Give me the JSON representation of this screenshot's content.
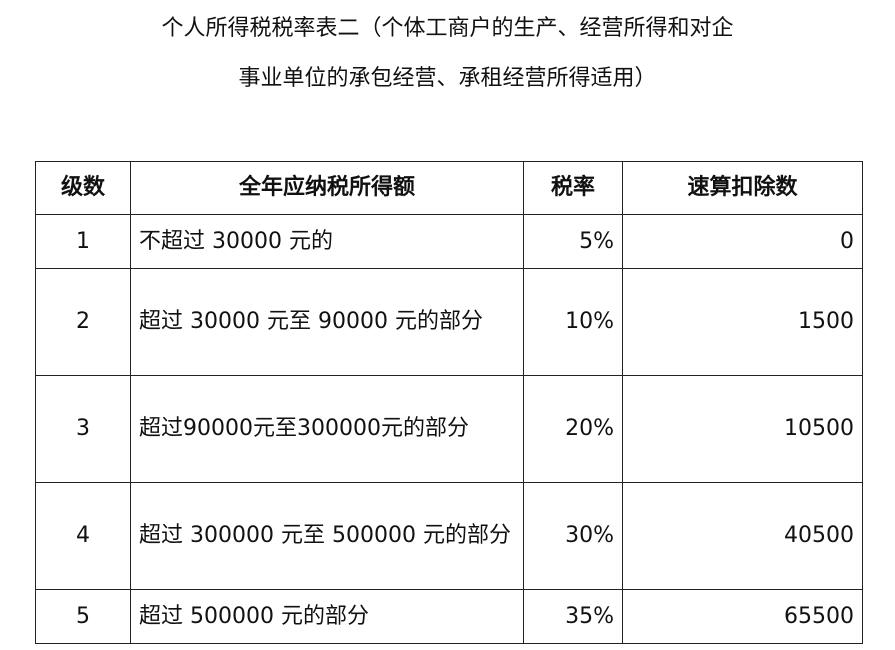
{
  "title": {
    "line1": "个人所得税税率表二（个体工商户的生产、经营所得和对企",
    "line2": "事业单位的承包经营、承租经营所得适用）"
  },
  "table": {
    "headers": [
      "级数",
      "全年应纳税所得额",
      "税率",
      "速算扣除数"
    ],
    "rows": [
      {
        "level": "1",
        "range": "不超过 30000 元的",
        "rate": "5%",
        "deduction": "0"
      },
      {
        "level": "2",
        "range": "超过 30000 元至 90000 元的部分",
        "rate": "10%",
        "deduction": "1500"
      },
      {
        "level": "3",
        "range": "超过90000元至300000元的部分",
        "rate": "20%",
        "deduction": "10500"
      },
      {
        "level": "4",
        "range": "超过 300000 元至 500000 元的部分",
        "rate": "30%",
        "deduction": "40500"
      },
      {
        "level": "5",
        "range": "超过 500000 元的部分",
        "rate": "35%",
        "deduction": "65500"
      }
    ]
  }
}
